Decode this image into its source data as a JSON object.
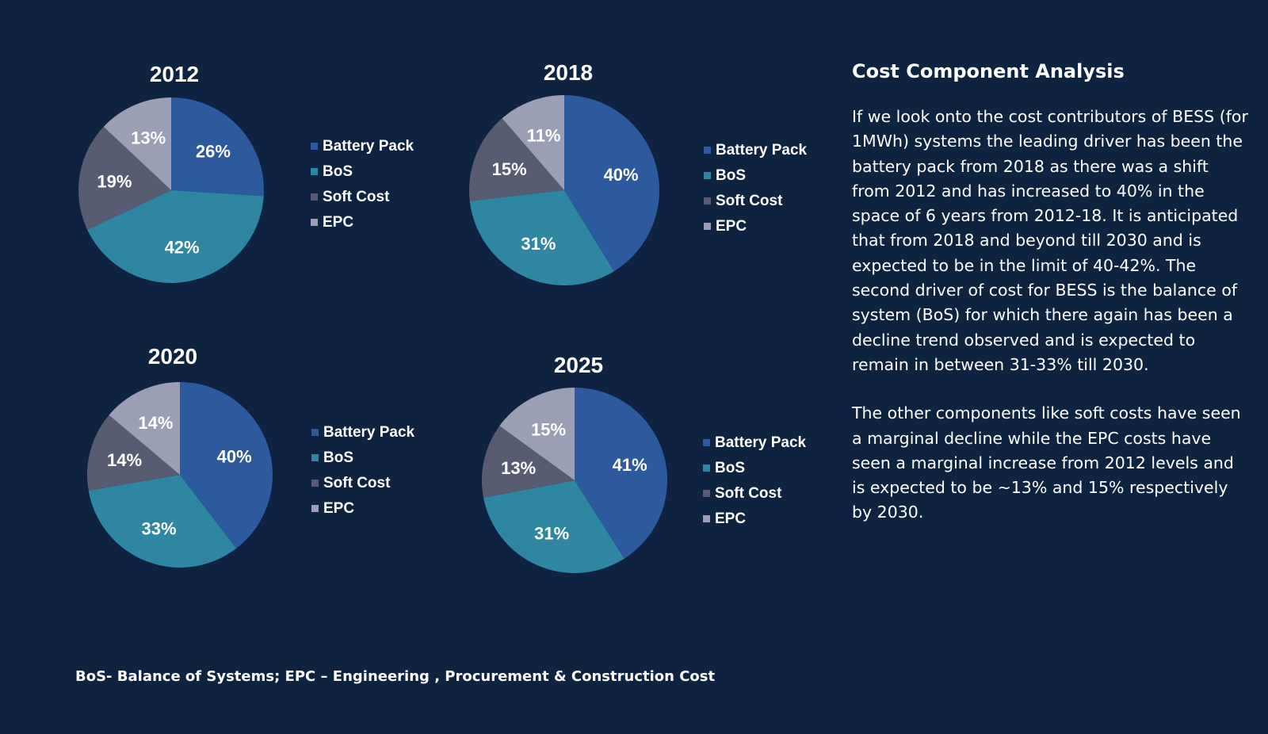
{
  "colors": {
    "background": "#0e2340",
    "battery_pack": "#2c5a9c",
    "bos": "#2e86a0",
    "soft_cost": "#585c72",
    "epc": "#9a9fb6"
  },
  "chart_data": [
    {
      "type": "pie",
      "title": "2012",
      "categories": [
        "Battery Pack",
        "BoS",
        "Soft Cost",
        "EPC"
      ],
      "values": [
        26,
        42,
        19,
        13
      ],
      "labels": [
        "26%",
        "42%",
        "19%",
        "13%"
      ],
      "legend": [
        "Battery Pack",
        "BoS",
        "Soft Cost",
        "EPC"
      ]
    },
    {
      "type": "pie",
      "title": "2018",
      "categories": [
        "Battery Pack",
        "BoS",
        "Soft Cost",
        "EPC"
      ],
      "values": [
        40,
        31,
        15,
        11
      ],
      "labels": [
        "40%",
        "31%",
        "15%",
        "11%"
      ],
      "legend": [
        "Battery Pack",
        "BoS",
        "Soft Cost",
        "EPC"
      ]
    },
    {
      "type": "pie",
      "title": "2020",
      "categories": [
        "Battery Pack",
        "BoS",
        "Soft Cost",
        "EPC"
      ],
      "values": [
        40,
        33,
        14,
        14
      ],
      "labels": [
        "40%",
        "33%",
        "14%",
        "14%"
      ],
      "legend": [
        "Battery Pack",
        "BoS",
        "Soft Cost",
        "EPC"
      ]
    },
    {
      "type": "pie",
      "title": "2025",
      "categories": [
        "Battery Pack",
        "BoS",
        "Soft Cost",
        "EPC"
      ],
      "values": [
        41,
        31,
        13,
        15
      ],
      "labels": [
        "41%",
        "31%",
        "13%",
        "15%"
      ],
      "legend": [
        "Battery Pack",
        "BoS",
        "Soft Cost",
        "EPC"
      ]
    }
  ],
  "analysis": {
    "title": "Cost Component Analysis",
    "paragraph_1": "If we look onto the cost contributors of BESS (for 1MWh) systems the leading driver has been the battery pack from 2018 as there was a shift from 2012 and has increased to 40% in the space of 6 years from 2012-18. It is anticipated that from 2018 and beyond till 2030 and is expected to be in the limit of 40-42%. The second driver of cost for BESS is the balance of system (BoS) for which there again has been a decline trend observed and is expected to remain in between 31-33% till 2030.",
    "paragraph_2": "The other components like soft costs have seen a marginal decline while the EPC costs have seen a marginal increase from 2012 levels and is expected to be ~13% and 15% respectively by 2030."
  },
  "footnote": "BoS- Balance of Systems; EPC – Engineering , Procurement & Construction Cost"
}
